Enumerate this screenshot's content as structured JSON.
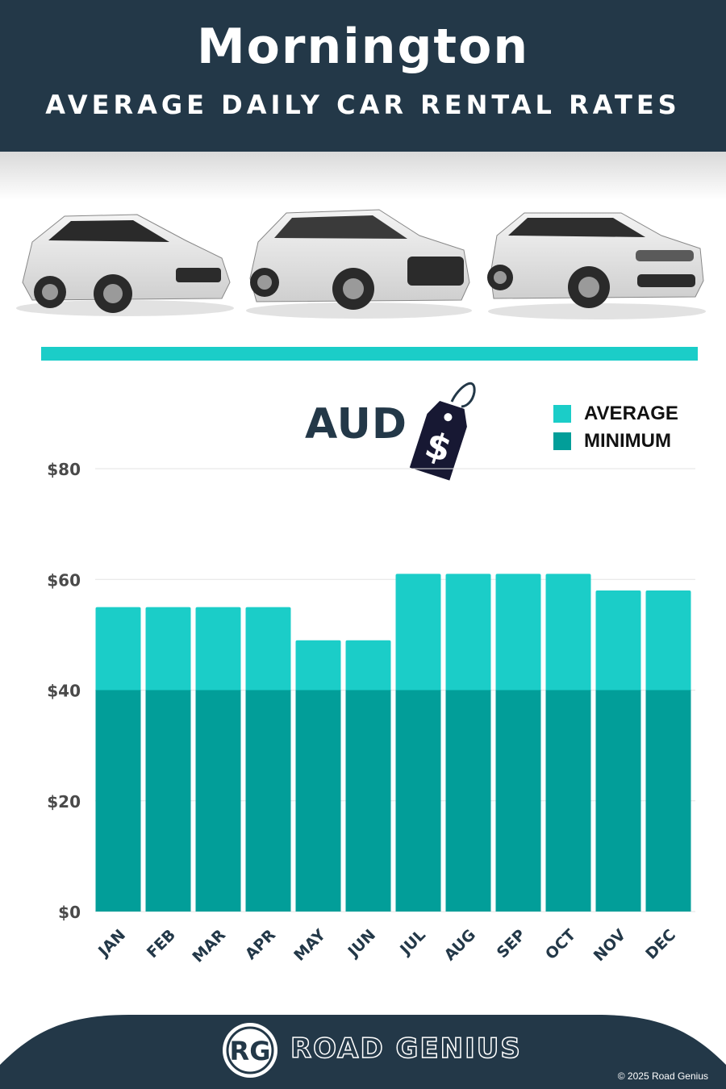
{
  "header": {
    "title": "Mornington",
    "subtitle": "AVERAGE DAILY CAR RENTAL RATES"
  },
  "currency": {
    "label": "AUD",
    "tag_symbol": "$"
  },
  "legend": {
    "items": [
      {
        "label": "AVERAGE",
        "color": "#1bcdc8"
      },
      {
        "label": "MINIMUM",
        "color": "#029e99"
      }
    ]
  },
  "chart_data": {
    "type": "bar",
    "stacked": "overlay",
    "categories": [
      "JAN",
      "FEB",
      "MAR",
      "APR",
      "MAY",
      "JUN",
      "JUL",
      "AUG",
      "SEP",
      "OCT",
      "NOV",
      "DEC"
    ],
    "series": [
      {
        "name": "AVERAGE",
        "values": [
          55,
          55,
          55,
          55,
          49,
          49,
          61,
          61,
          61,
          61,
          58,
          58
        ],
        "color": "#1bcdc8"
      },
      {
        "name": "MINIMUM",
        "values": [
          40,
          40,
          40,
          40,
          40,
          40,
          40,
          40,
          40,
          40,
          40,
          40
        ],
        "color": "#029e99"
      }
    ],
    "yticks": [
      "$0",
      "$20",
      "$40",
      "$60",
      "$80"
    ],
    "ylim": [
      0,
      80
    ],
    "grid": true,
    "legend_position": "top-right"
  },
  "footer": {
    "logo_initials": "RG",
    "brand": "ROAD GENIUS",
    "copyright": "© 2025 Road Genius"
  }
}
